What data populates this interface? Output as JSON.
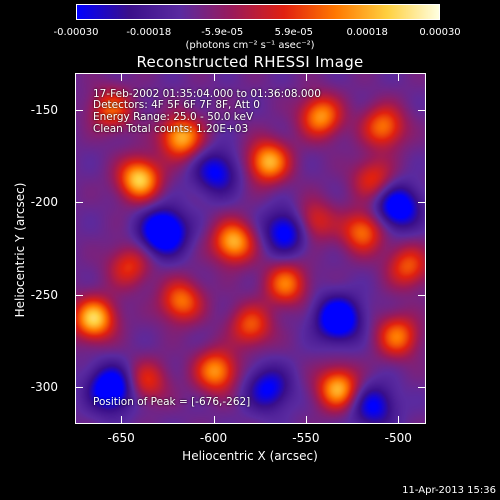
{
  "colorbar": {
    "ticks": [
      "-0.00030",
      "-0.00018",
      "-5.9e-05",
      "5.9e-05",
      "0.00018",
      "0.00030"
    ],
    "tick_values": [
      -0.0003,
      -0.00018,
      -5.9e-05,
      5.9e-05,
      0.00018,
      0.0003
    ],
    "units": "(photons cm⁻² s⁻¹ asec⁻²)",
    "colormap": [
      "#0000ff",
      "#3a0f8a",
      "#5a2aa0",
      "#9a1a5a",
      "#e02010",
      "#ff7800",
      "#ffd040",
      "#ffffe0"
    ]
  },
  "chart_data": {
    "type": "heatmap",
    "title": "Reconstructed RHESSI Image",
    "xlabel": "Heliocentric X (arcsec)",
    "ylabel": "Heliocentric Y (arcsec)",
    "xlim": [
      -675,
      -485
    ],
    "ylim": [
      -320,
      -130
    ],
    "xticks": [
      "-650",
      "-600",
      "-550",
      "-500"
    ],
    "xtick_values": [
      -650,
      -600,
      -550,
      -500
    ],
    "yticks": [
      "-150",
      "-200",
      "-250",
      "-300"
    ],
    "ytick_values": [
      -150,
      -200,
      -250,
      -300
    ],
    "peak": [
      -676,
      -262
    ],
    "zlim": [
      -0.0003,
      0.0003
    ]
  },
  "info": {
    "line1": "17-Feb-2002 01:35:04.000 to 01:36:08.000",
    "line2": "Detectors: 4F 5F 6F 7F 8F, Att 0",
    "line3": "Energy Range: 25.0 - 50.0 keV",
    "line4": "Clean     Total counts: 1.20E+03",
    "peak_label": "Position of Peak = [-676,-262]"
  },
  "date_stamp": "11-Apr-2013 15:36"
}
